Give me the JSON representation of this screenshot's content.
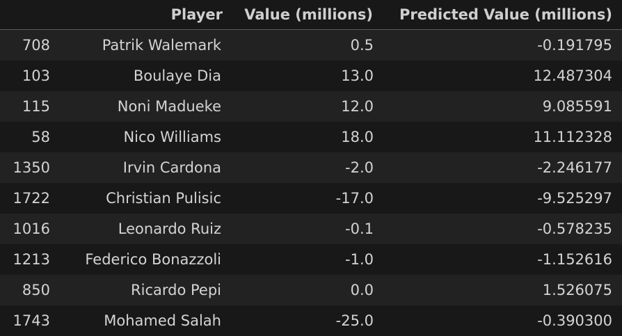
{
  "table": {
    "columns": {
      "index": "",
      "player": "Player",
      "value": "Value (millions)",
      "predicted": "Predicted Value (millions)"
    },
    "rows": [
      {
        "index": "708",
        "player": "Patrik Walemark",
        "value": "0.5",
        "predicted": "-0.191795"
      },
      {
        "index": "103",
        "player": "Boulaye Dia",
        "value": "13.0",
        "predicted": "12.487304"
      },
      {
        "index": "115",
        "player": "Noni Madueke",
        "value": "12.0",
        "predicted": "9.085591"
      },
      {
        "index": "58",
        "player": "Nico Williams",
        "value": "18.0",
        "predicted": "11.112328"
      },
      {
        "index": "1350",
        "player": "Irvin Cardona",
        "value": "-2.0",
        "predicted": "-2.246177"
      },
      {
        "index": "1722",
        "player": "Christian Pulisic",
        "value": "-17.0",
        "predicted": "-9.525297"
      },
      {
        "index": "1016",
        "player": "Leonardo Ruiz",
        "value": "-0.1",
        "predicted": "-0.578235"
      },
      {
        "index": "1213",
        "player": "Federico Bonazzoli",
        "value": "-1.0",
        "predicted": "-1.152616"
      },
      {
        "index": "850",
        "player": "Ricardo Pepi",
        "value": "0.0",
        "predicted": "1.526075"
      },
      {
        "index": "1743",
        "player": "Mohamed Salah",
        "value": "-25.0",
        "predicted": "-0.390300"
      }
    ]
  }
}
